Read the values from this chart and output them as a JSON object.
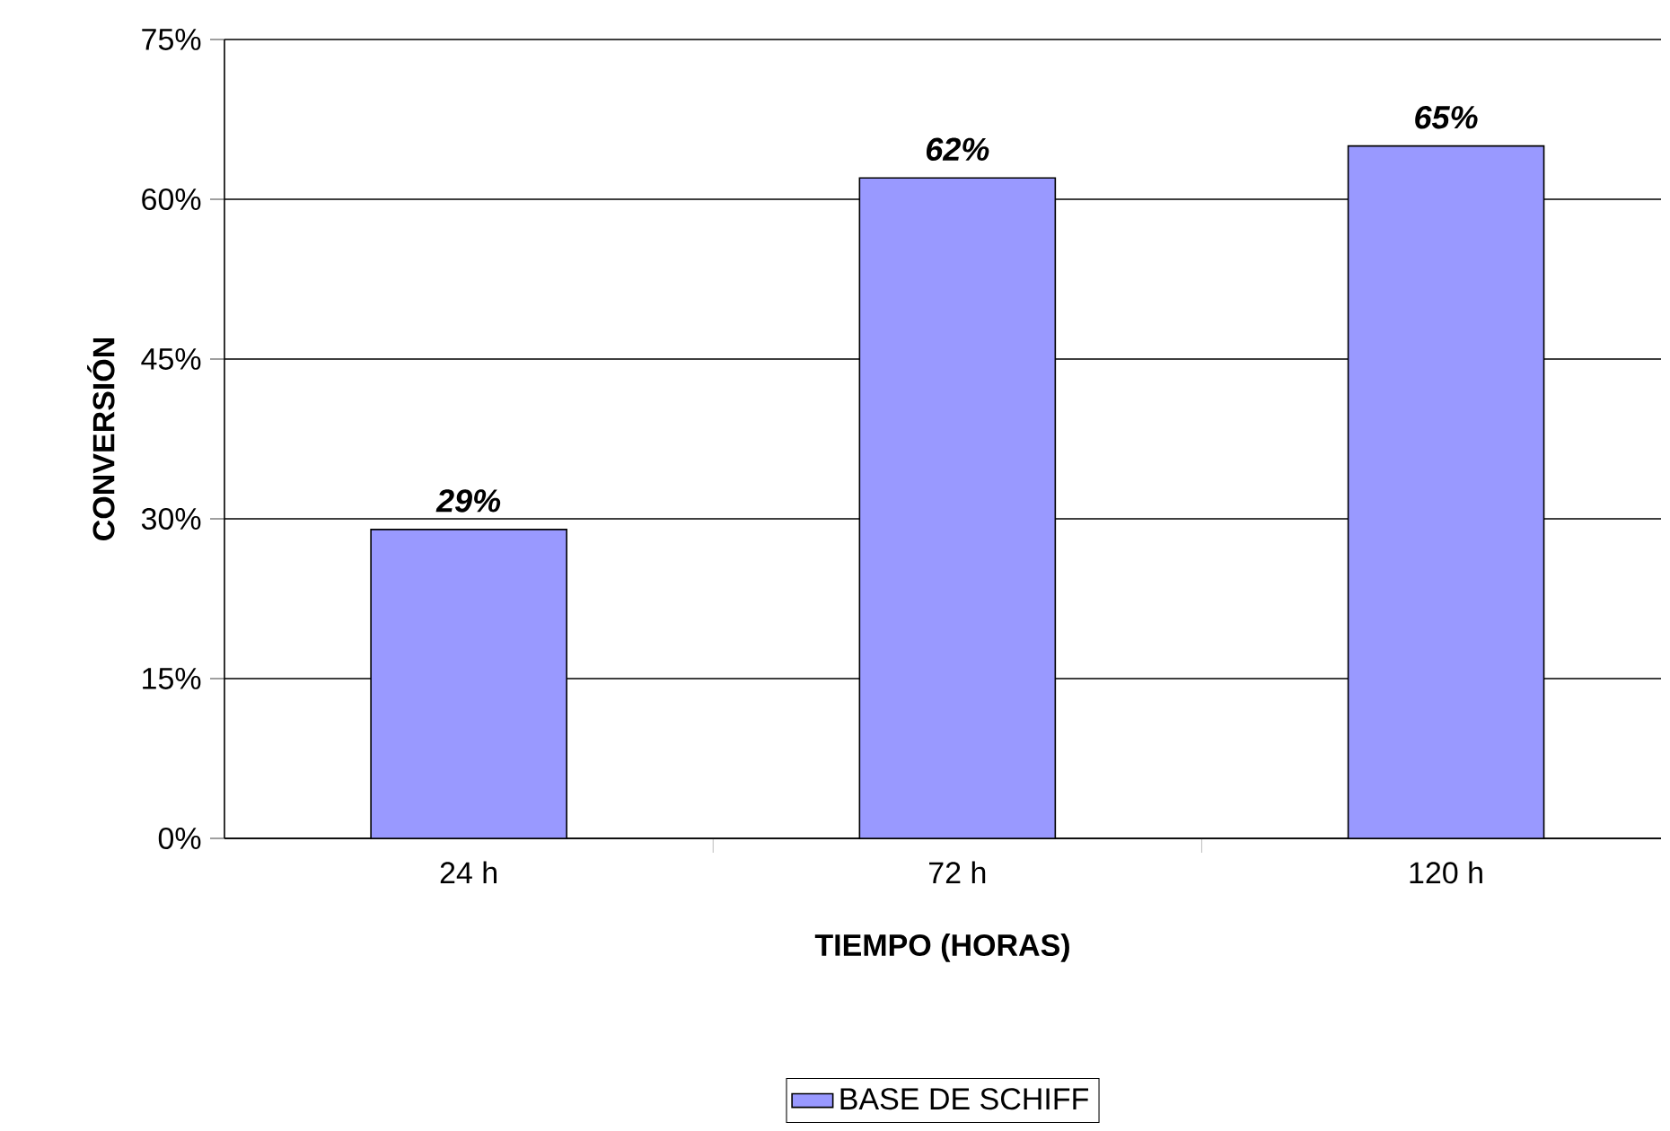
{
  "chart_data": {
    "type": "bar",
    "xlabel": "TIEMPO (HORAS)",
    "ylabel": "CONVERSIÓN",
    "categories": [
      "24 h",
      "72 h",
      "120 h"
    ],
    "series": [
      {
        "name": "BASE DE SCHIFF",
        "color": "#9999ff",
        "values": [
          29,
          62,
          65
        ],
        "value_labels": [
          "29%",
          "62%",
          "65%"
        ]
      }
    ],
    "ylim": [
      0,
      75
    ],
    "yticks": [
      {
        "value": 0,
        "label": "0%"
      },
      {
        "value": 15,
        "label": "15%"
      },
      {
        "value": 30,
        "label": "30%"
      },
      {
        "value": 45,
        "label": "45%"
      },
      {
        "value": 60,
        "label": "60%"
      },
      {
        "value": 75,
        "label": "75%"
      }
    ],
    "grid": "y",
    "legend": "bottom"
  }
}
